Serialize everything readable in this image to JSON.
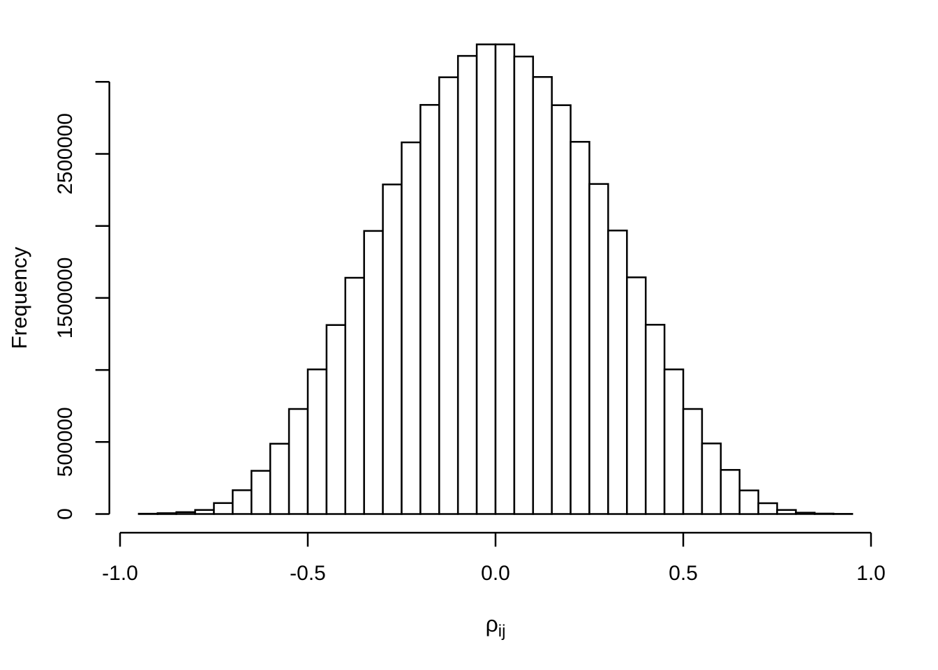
{
  "figure": {
    "background_color": "#ffffff",
    "text_color": "#000000",
    "title": ""
  },
  "chart_data": {
    "type": "bar",
    "subtype": "histogram",
    "title": "",
    "xlabel_base": "ρ",
    "xlabel_subscript": "ij",
    "ylabel": "Frequency",
    "grid": false,
    "legend": false,
    "bar_fill": "#ffffff",
    "bar_stroke": "#000000",
    "xlim": [
      -1.0,
      1.0
    ],
    "ylim": [
      0,
      3000000
    ],
    "bin_start": -0.95,
    "bin_width": 0.05,
    "counts": [
      2000,
      6000,
      13000,
      28000,
      76000,
      165000,
      300000,
      488000,
      729000,
      1004000,
      1312000,
      1640000,
      1965000,
      2288000,
      2580000,
      2840000,
      3032000,
      3180000,
      3260000,
      3260000,
      3176000,
      3034000,
      2838000,
      2584000,
      2291000,
      1968000,
      1643000,
      1314000,
      1004000,
      729000,
      490000,
      306000,
      164000,
      75000,
      28000,
      9000,
      3000,
      1000
    ],
    "x_ticks": [
      {
        "value": -1.0,
        "label": "-1.0"
      },
      {
        "value": -0.5,
        "label": "-0.5"
      },
      {
        "value": 0.0,
        "label": "0.0"
      },
      {
        "value": 0.5,
        "label": "0.5"
      },
      {
        "value": 1.0,
        "label": "1.0"
      }
    ],
    "y_ticks": [
      {
        "value": 0,
        "label": "0"
      },
      {
        "value": 500000,
        "label": "500000"
      },
      {
        "value": 1000000,
        "label": ""
      },
      {
        "value": 1500000,
        "label": "1500000"
      },
      {
        "value": 2000000,
        "label": ""
      },
      {
        "value": 2500000,
        "label": "2500000"
      },
      {
        "value": 3000000,
        "label": ""
      }
    ]
  }
}
